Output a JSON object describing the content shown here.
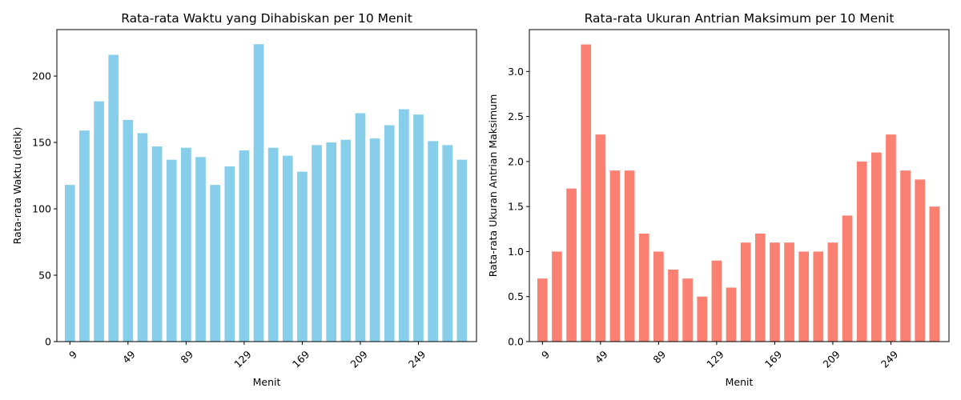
{
  "chart_data": [
    {
      "type": "bar",
      "title": "Rata-rata Waktu yang Dihabiskan per 10 Menit",
      "xlabel": "Menit",
      "ylabel": "Rata-rata Waktu (detik)",
      "x": [
        9,
        19,
        29,
        39,
        49,
        59,
        69,
        79,
        89,
        99,
        109,
        119,
        129,
        139,
        149,
        159,
        169,
        179,
        189,
        199,
        209,
        219,
        229,
        239,
        249,
        259,
        269,
        279
      ],
      "values": [
        118,
        159,
        181,
        216,
        167,
        157,
        147,
        137,
        146,
        139,
        118,
        132,
        144,
        224,
        146,
        140,
        128,
        148,
        150,
        152,
        172,
        153,
        163,
        175,
        171,
        151,
        148,
        137
      ],
      "xticks": [
        9,
        49,
        89,
        129,
        169,
        209,
        249
      ],
      "yticks": [
        0,
        50,
        100,
        150,
        200
      ],
      "ylim": [
        0,
        235
      ],
      "xlim": [
        0,
        289
      ],
      "bar_width": 7,
      "color": "#87CEEB",
      "grid": false
    },
    {
      "type": "bar",
      "title": "Rata-rata Ukuran Antrian Maksimum per 10 Menit",
      "xlabel": "Menit",
      "ylabel": "Rata-rata Ukuran Antrian Maksimum",
      "x": [
        9,
        19,
        29,
        39,
        49,
        59,
        69,
        79,
        89,
        99,
        109,
        119,
        129,
        139,
        149,
        159,
        169,
        179,
        189,
        199,
        209,
        219,
        229,
        239,
        249,
        259,
        269,
        279
      ],
      "values": [
        0.7,
        1.0,
        1.7,
        3.3,
        2.3,
        1.9,
        1.9,
        1.2,
        1.0,
        0.8,
        0.7,
        0.5,
        0.9,
        0.6,
        1.1,
        1.2,
        1.1,
        1.1,
        1.0,
        1.0,
        1.1,
        1.4,
        2.0,
        2.1,
        2.3,
        1.9,
        1.8,
        1.5
      ],
      "xticks": [
        9,
        49,
        89,
        129,
        169,
        209,
        249
      ],
      "yticks": [
        0.0,
        0.5,
        1.0,
        1.5,
        2.0,
        2.5,
        3.0
      ],
      "ytick_labels": [
        "0.0",
        "0.5",
        "1.0",
        "1.5",
        "2.0",
        "2.5",
        "3.0"
      ],
      "ylim": [
        0,
        3.465
      ],
      "xlim": [
        0,
        289
      ],
      "bar_width": 7,
      "color": "#FA8072",
      "grid": false
    }
  ]
}
